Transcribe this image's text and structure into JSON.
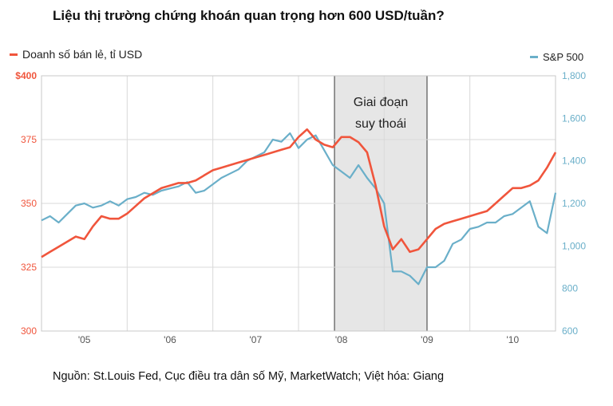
{
  "title": "Liệu thị trường chứng khoán quan trọng hơn 600 USD/tuần?",
  "source": "Nguồn: St.Louis Fed, Cục điều tra dân số Mỹ, MarketWatch; Việt hóa: Giang",
  "colors": {
    "retail": "#f0553c",
    "sp500": "#6aafc9",
    "recession": "#e6e6e6",
    "grid": "#d9d9d9"
  },
  "chart_data": {
    "type": "line",
    "recession_label": [
      "Giai đoạn",
      "suy thoái"
    ],
    "recession_range": [
      2007.92,
      2009.0
    ],
    "x_ticks": [
      {
        "label": "'05",
        "pos": 2005.0
      },
      {
        "label": "'06",
        "pos": 2006.0
      },
      {
        "label": "'07",
        "pos": 2007.0
      },
      {
        "label": "'08",
        "pos": 2008.0
      },
      {
        "label": "'09",
        "pos": 2009.0
      },
      {
        "label": "'10",
        "pos": 2010.0
      }
    ],
    "xlim": [
      2004.5,
      2010.5
    ],
    "left_axis": {
      "ylim": [
        300,
        400
      ],
      "ticks": [
        "$400",
        "375",
        "350",
        "325",
        "300"
      ],
      "tick_values": [
        400,
        375,
        350,
        325,
        300
      ]
    },
    "right_axis": {
      "ylim": [
        600,
        1800
      ],
      "ticks": [
        "1,800",
        "1,600",
        "1,400",
        "1,200",
        "1,000",
        "800",
        "600"
      ],
      "tick_values": [
        1800,
        1600,
        1400,
        1200,
        1000,
        800,
        600
      ]
    },
    "series": [
      {
        "name": "Doanh số bán lẻ, tỉ USD",
        "axis": "left",
        "points": [
          [
            2004.5,
            329
          ],
          [
            2004.6,
            331
          ],
          [
            2004.7,
            333
          ],
          [
            2004.8,
            335
          ],
          [
            2004.9,
            337
          ],
          [
            2005.0,
            336
          ],
          [
            2005.1,
            341
          ],
          [
            2005.2,
            345
          ],
          [
            2005.3,
            344
          ],
          [
            2005.4,
            344
          ],
          [
            2005.5,
            346
          ],
          [
            2005.6,
            349
          ],
          [
            2005.7,
            352
          ],
          [
            2005.8,
            354
          ],
          [
            2005.9,
            356
          ],
          [
            2006.0,
            357
          ],
          [
            2006.1,
            358
          ],
          [
            2006.2,
            358
          ],
          [
            2006.3,
            359
          ],
          [
            2006.4,
            361
          ],
          [
            2006.5,
            363
          ],
          [
            2006.6,
            364
          ],
          [
            2006.7,
            365
          ],
          [
            2006.8,
            366
          ],
          [
            2006.9,
            367
          ],
          [
            2007.0,
            368
          ],
          [
            2007.1,
            369
          ],
          [
            2007.2,
            370
          ],
          [
            2007.3,
            371
          ],
          [
            2007.4,
            372
          ],
          [
            2007.5,
            376
          ],
          [
            2007.6,
            379
          ],
          [
            2007.7,
            375
          ],
          [
            2007.8,
            373
          ],
          [
            2007.9,
            372
          ],
          [
            2008.0,
            376
          ],
          [
            2008.1,
            376
          ],
          [
            2008.2,
            374
          ],
          [
            2008.3,
            370
          ],
          [
            2008.4,
            357
          ],
          [
            2008.5,
            341
          ],
          [
            2008.6,
            332
          ],
          [
            2008.7,
            336
          ],
          [
            2008.8,
            331
          ],
          [
            2008.9,
            332
          ],
          [
            2009.0,
            336
          ],
          [
            2009.1,
            340
          ],
          [
            2009.2,
            342
          ],
          [
            2009.3,
            343
          ],
          [
            2009.4,
            344
          ],
          [
            2009.5,
            345
          ],
          [
            2009.6,
            346
          ],
          [
            2009.7,
            347
          ],
          [
            2009.8,
            350
          ],
          [
            2009.9,
            353
          ],
          [
            2010.0,
            356
          ],
          [
            2010.1,
            356
          ],
          [
            2010.2,
            357
          ],
          [
            2010.3,
            359
          ],
          [
            2010.4,
            364
          ],
          [
            2010.5,
            370
          ]
        ]
      },
      {
        "name": "S&P 500",
        "axis": "right",
        "points": [
          [
            2004.5,
            1120
          ],
          [
            2004.6,
            1140
          ],
          [
            2004.7,
            1110
          ],
          [
            2004.8,
            1150
          ],
          [
            2004.9,
            1190
          ],
          [
            2005.0,
            1200
          ],
          [
            2005.1,
            1180
          ],
          [
            2005.2,
            1190
          ],
          [
            2005.3,
            1210
          ],
          [
            2005.4,
            1190
          ],
          [
            2005.5,
            1220
          ],
          [
            2005.6,
            1230
          ],
          [
            2005.7,
            1250
          ],
          [
            2005.8,
            1240
          ],
          [
            2005.9,
            1260
          ],
          [
            2006.0,
            1270
          ],
          [
            2006.1,
            1280
          ],
          [
            2006.2,
            1300
          ],
          [
            2006.3,
            1250
          ],
          [
            2006.4,
            1260
          ],
          [
            2006.5,
            1290
          ],
          [
            2006.6,
            1320
          ],
          [
            2006.7,
            1340
          ],
          [
            2006.8,
            1360
          ],
          [
            2006.9,
            1400
          ],
          [
            2007.0,
            1420
          ],
          [
            2007.1,
            1440
          ],
          [
            2007.2,
            1500
          ],
          [
            2007.3,
            1490
          ],
          [
            2007.4,
            1530
          ],
          [
            2007.5,
            1460
          ],
          [
            2007.6,
            1500
          ],
          [
            2007.7,
            1520
          ],
          [
            2007.8,
            1450
          ],
          [
            2007.9,
            1380
          ],
          [
            2008.0,
            1350
          ],
          [
            2008.1,
            1320
          ],
          [
            2008.2,
            1380
          ],
          [
            2008.3,
            1320
          ],
          [
            2008.4,
            1270
          ],
          [
            2008.5,
            1200
          ],
          [
            2008.6,
            880
          ],
          [
            2008.7,
            880
          ],
          [
            2008.8,
            860
          ],
          [
            2008.9,
            820
          ],
          [
            2009.0,
            900
          ],
          [
            2009.1,
            900
          ],
          [
            2009.2,
            930
          ],
          [
            2009.3,
            1010
          ],
          [
            2009.4,
            1030
          ],
          [
            2009.5,
            1080
          ],
          [
            2009.6,
            1090
          ],
          [
            2009.7,
            1110
          ],
          [
            2009.8,
            1110
          ],
          [
            2009.9,
            1140
          ],
          [
            2010.0,
            1150
          ],
          [
            2010.1,
            1180
          ],
          [
            2010.2,
            1210
          ],
          [
            2010.3,
            1090
          ],
          [
            2010.4,
            1060
          ],
          [
            2010.5,
            1250
          ]
        ]
      }
    ]
  }
}
